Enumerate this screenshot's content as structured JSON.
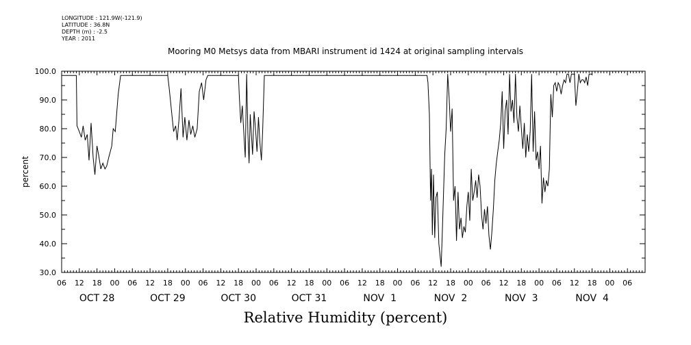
{
  "meta": {
    "longitude": "LONGITUDE : 121.9W(-121.9)",
    "latitude": "LATITUDE : 36.8N",
    "depth": "DEPTH (m) : -2.5",
    "year": "YEAR : 2011"
  },
  "title": "Mooring M0 Metsys data from MBARI instrument id 1424 at original sampling intervals",
  "bottom_label": "Relative Humidity (percent)",
  "chart_data": {
    "type": "line",
    "ylabel": "percent",
    "xlabel": "Relative Humidity (percent)",
    "ylim": [
      30,
      100
    ],
    "yticks": [
      30,
      40,
      50,
      60,
      70,
      80,
      90,
      100
    ],
    "xlim_hours": [
      0,
      198
    ],
    "hour_tick_labels": [
      "06",
      "12",
      "18",
      "00",
      "06",
      "12",
      "18",
      "00",
      "06",
      "12",
      "18",
      "00",
      "06",
      "12",
      "18",
      "00",
      "06",
      "12",
      "18",
      "00",
      "06",
      "12",
      "18",
      "00",
      "06",
      "12",
      "18",
      "00",
      "06",
      "12",
      "18",
      "00",
      "06"
    ],
    "date_labels": [
      "OCT 28",
      "OCT 29",
      "OCT 30",
      "OCT 31",
      "NOV  1",
      "NOV  2",
      "NOV  3",
      "NOV  4"
    ],
    "date_label_hours": [
      12,
      36,
      60,
      84,
      108,
      132,
      156,
      180
    ],
    "series": [
      {
        "values": [
          [
            0,
            98.5
          ],
          [
            5,
            98.5
          ],
          [
            5.2,
            81
          ],
          [
            6,
            79
          ],
          [
            6.7,
            77
          ],
          [
            7.3,
            81
          ],
          [
            8,
            76
          ],
          [
            8.7,
            78
          ],
          [
            9.3,
            69
          ],
          [
            10,
            82
          ],
          [
            10.7,
            70
          ],
          [
            11.3,
            64
          ],
          [
            12,
            74
          ],
          [
            12.7,
            70
          ],
          [
            13.3,
            66
          ],
          [
            14,
            68
          ],
          [
            14.7,
            66
          ],
          [
            15.3,
            67
          ],
          [
            16,
            70
          ],
          [
            17,
            74
          ],
          [
            17.5,
            80
          ],
          [
            18.2,
            79
          ],
          [
            19.2,
            92
          ],
          [
            20,
            98.5
          ],
          [
            36,
            98.5
          ],
          [
            36.5,
            94
          ],
          [
            37.3,
            86
          ],
          [
            38,
            79
          ],
          [
            38.7,
            81
          ],
          [
            39.2,
            76
          ],
          [
            39.8,
            83
          ],
          [
            40.5,
            94
          ],
          [
            41.2,
            77
          ],
          [
            41.8,
            84
          ],
          [
            42.5,
            76
          ],
          [
            43.2,
            83
          ],
          [
            43.8,
            78
          ],
          [
            44.5,
            81
          ],
          [
            45.2,
            77
          ],
          [
            46,
            80
          ],
          [
            46.7,
            93
          ],
          [
            47.5,
            96
          ],
          [
            48.2,
            90
          ],
          [
            49,
            97
          ],
          [
            49.6,
            98.5
          ],
          [
            60,
            98.5
          ],
          [
            60.3,
            91
          ],
          [
            60.8,
            82
          ],
          [
            61.3,
            88
          ],
          [
            61.8,
            79
          ],
          [
            62.3,
            70
          ],
          [
            62.8,
            99
          ],
          [
            63.2,
            78
          ],
          [
            63.6,
            68
          ],
          [
            64,
            85
          ],
          [
            64.4,
            78
          ],
          [
            64.8,
            71
          ],
          [
            65.3,
            86
          ],
          [
            65.8,
            80
          ],
          [
            66.3,
            72
          ],
          [
            66.8,
            84
          ],
          [
            67.3,
            75
          ],
          [
            67.8,
            69
          ],
          [
            68.2,
            79
          ],
          [
            68.8,
            98.5
          ],
          [
            124,
            98.5
          ],
          [
            124.3,
            96
          ],
          [
            124.8,
            85
          ],
          [
            125.2,
            55
          ],
          [
            125.5,
            66
          ],
          [
            125.8,
            43
          ],
          [
            126.2,
            64
          ],
          [
            126.6,
            42
          ],
          [
            127,
            56
          ],
          [
            127.5,
            58
          ],
          [
            128,
            40
          ],
          [
            128.4,
            36
          ],
          [
            128.8,
            32
          ],
          [
            129.2,
            45
          ],
          [
            129.6,
            58
          ],
          [
            130,
            71
          ],
          [
            130.5,
            80
          ],
          [
            131,
            99
          ],
          [
            131.5,
            91
          ],
          [
            132,
            79
          ],
          [
            132.5,
            87
          ],
          [
            133,
            55
          ],
          [
            133.5,
            60
          ],
          [
            134,
            41
          ],
          [
            134.5,
            58
          ],
          [
            135,
            45
          ],
          [
            135.5,
            49
          ],
          [
            136,
            42
          ],
          [
            136.5,
            46
          ],
          [
            137,
            44
          ],
          [
            137.5,
            53
          ],
          [
            138,
            58
          ],
          [
            138.5,
            48
          ],
          [
            139,
            66
          ],
          [
            139.5,
            55
          ],
          [
            140,
            58
          ],
          [
            140.5,
            62
          ],
          [
            141,
            56
          ],
          [
            141.5,
            64
          ],
          [
            142,
            60
          ],
          [
            142.5,
            50
          ],
          [
            143,
            45
          ],
          [
            143.5,
            52
          ],
          [
            144,
            47
          ],
          [
            144.5,
            53
          ],
          [
            145,
            43
          ],
          [
            145.5,
            38
          ],
          [
            146,
            44
          ],
          [
            146.5,
            52
          ],
          [
            147,
            62
          ],
          [
            147.5,
            68
          ],
          [
            148,
            72
          ],
          [
            148.5,
            76
          ],
          [
            149,
            82
          ],
          [
            149.5,
            93
          ],
          [
            150,
            73
          ],
          [
            150.5,
            86
          ],
          [
            151,
            90
          ],
          [
            151.5,
            78
          ],
          [
            152,
            99
          ],
          [
            152.5,
            86
          ],
          [
            153,
            90
          ],
          [
            153.5,
            82
          ],
          [
            154,
            99
          ],
          [
            154.5,
            84
          ],
          [
            155,
            79
          ],
          [
            155.5,
            88
          ],
          [
            156,
            80
          ],
          [
            156.5,
            73
          ],
          [
            157,
            82
          ],
          [
            157.5,
            70
          ],
          [
            158,
            78
          ],
          [
            158.5,
            72
          ],
          [
            159,
            79
          ],
          [
            159.5,
            99
          ],
          [
            160,
            72
          ],
          [
            160.5,
            86
          ],
          [
            161,
            69
          ],
          [
            161.5,
            72
          ],
          [
            162,
            66
          ],
          [
            162.5,
            74
          ],
          [
            163,
            54
          ],
          [
            163.5,
            63
          ],
          [
            164,
            58
          ],
          [
            164.5,
            62
          ],
          [
            165,
            60
          ],
          [
            165.5,
            66
          ],
          [
            166,
            92
          ],
          [
            166.5,
            84
          ],
          [
            167,
            95
          ],
          [
            167.5,
            96
          ],
          [
            168,
            93
          ],
          [
            168.5,
            96
          ],
          [
            169,
            95
          ],
          [
            169.5,
            92
          ],
          [
            170,
            95
          ],
          [
            170.5,
            97
          ],
          [
            171,
            96
          ],
          [
            171.5,
            99
          ],
          [
            172,
            99
          ],
          [
            172.5,
            96
          ],
          [
            173,
            99
          ],
          [
            173.5,
            99
          ],
          [
            174,
            99
          ],
          [
            174.5,
            88
          ],
          [
            175,
            93
          ],
          [
            175.5,
            99
          ],
          [
            176,
            96
          ],
          [
            176.5,
            97
          ],
          [
            177,
            97
          ],
          [
            177.5,
            96
          ],
          [
            178,
            98
          ],
          [
            178.5,
            95
          ],
          [
            179,
            99
          ],
          [
            180,
            99
          ]
        ]
      }
    ]
  }
}
